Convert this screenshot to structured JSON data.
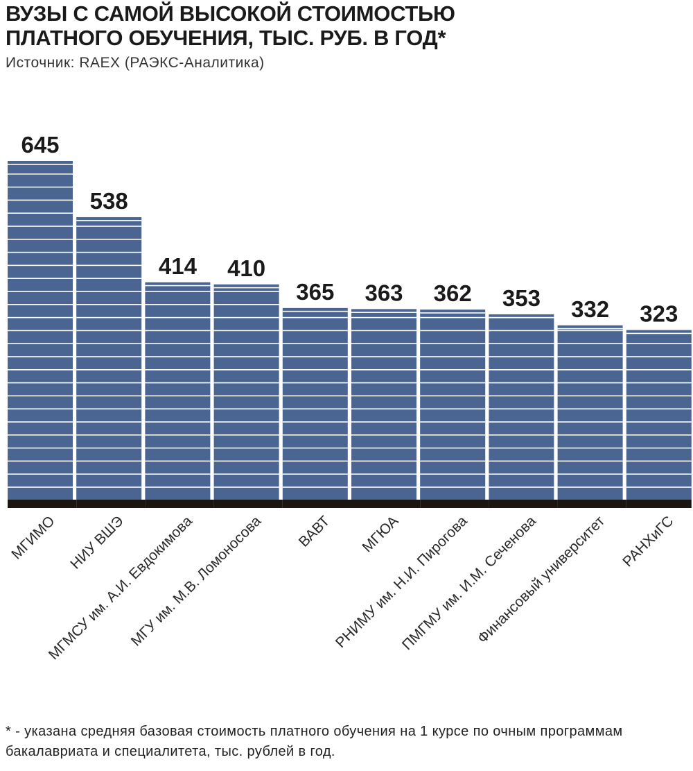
{
  "title_lines": [
    "Вузы с самой высокой стоимостью",
    "платного обучения, тыс. руб. в год*"
  ],
  "source": "Источник: RAEX (РАЭКС-Аналитика)",
  "footnote": "* - указана средняя базовая стоимость платного обучения на 1 курсе по очным программам бакалавриата и специалитета, тыс. рублей в год.",
  "colors": {
    "bar": "#4a6591",
    "stripe": "#ffffff",
    "base": "#1c1410",
    "text": "#1a1a1a"
  },
  "chart_data": {
    "type": "bar",
    "categories": [
      "МГИМО",
      "НИУ ВШЭ",
      "МГМСУ им. А.И. Евдокимова",
      "МГУ им. М.В. Ломоносова",
      "ВАВТ",
      "МГЮА",
      "РНИМУ им. Н.И. Пирогова",
      "ПМГМУ им. И.М. Сеченова",
      "Финансовый университет",
      "РАНХиГС"
    ],
    "values": [
      645,
      538,
      414,
      410,
      365,
      363,
      362,
      353,
      332,
      323
    ],
    "data_labels": [
      "645",
      "538",
      "414",
      "410",
      "365",
      "363",
      "362",
      "353",
      "332",
      "323"
    ],
    "grid": false,
    "legend": "none"
  }
}
